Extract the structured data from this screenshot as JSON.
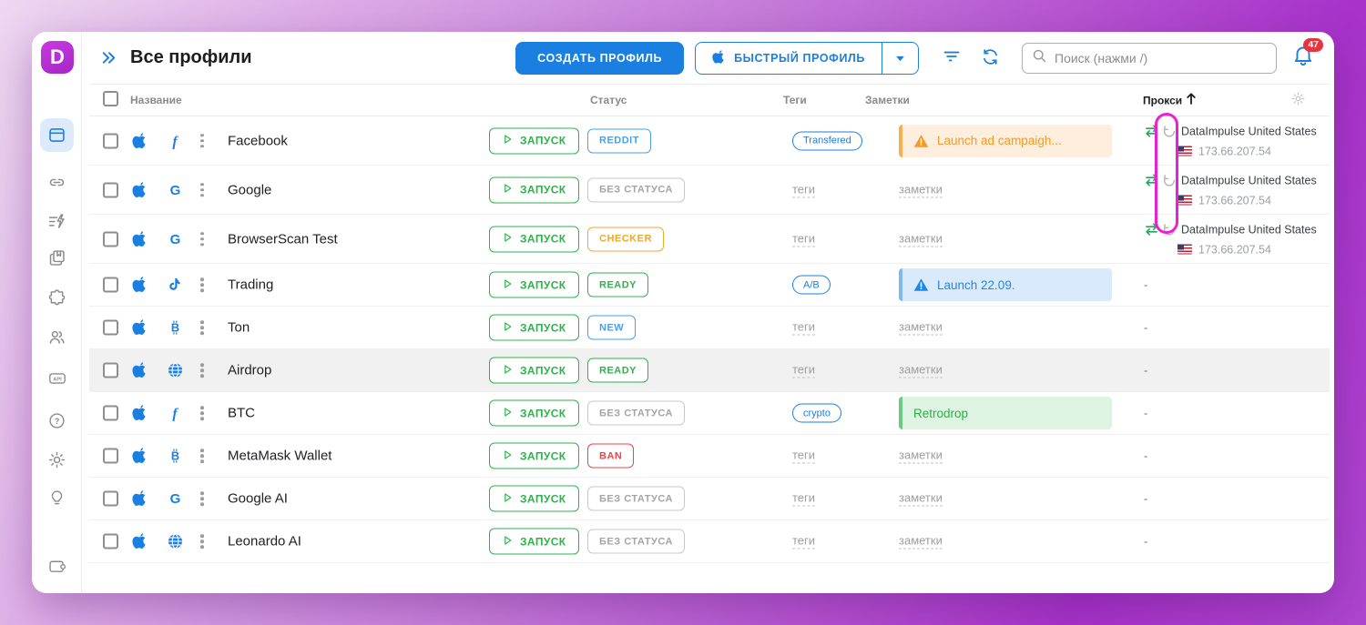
{
  "logo_letter": "D",
  "header": {
    "title": "Все профили",
    "create_button": "СОЗДАТЬ ПРОФИЛЬ",
    "quick_button": "БЫСТРЫЙ ПРОФИЛЬ",
    "search_placeholder": "Поиск (нажми /)",
    "notifications_badge": "47"
  },
  "sidebar": {
    "items": [
      {
        "id": "profiles",
        "icon": "browser-profiles-icon",
        "active": true
      },
      {
        "id": "proxy",
        "icon": "link-icon",
        "active": false
      },
      {
        "id": "automation",
        "icon": "automation-lightning-icon",
        "active": false
      },
      {
        "id": "bookmarks",
        "icon": "pages-icon",
        "active": false
      },
      {
        "id": "extensions",
        "icon": "puzzle-icon",
        "active": false
      },
      {
        "id": "team",
        "icon": "users-icon",
        "active": false
      },
      {
        "id": "api",
        "icon": "api-icon",
        "active": false
      },
      {
        "id": "help",
        "icon": "question-icon",
        "active": false
      },
      {
        "id": "settings",
        "icon": "gear-icon",
        "active": false
      },
      {
        "id": "ideas",
        "icon": "bulb-icon",
        "active": false
      },
      {
        "id": "wallet",
        "icon": "wallet-icon",
        "active": false
      }
    ]
  },
  "table": {
    "headers": {
      "name": "Название",
      "status": "Статус",
      "tags": "Теги",
      "notes": "Заметки",
      "proxy": "Прокси"
    },
    "sort": {
      "column": "Прокси",
      "direction": "asc"
    },
    "launch_label": "ЗАПУСК",
    "tags_placeholder": "теги",
    "notes_placeholder": "заметки",
    "proxy_empty": "-",
    "rows": [
      {
        "name": "Facebook",
        "os_icon": "apple",
        "app_icon": "facebook",
        "status": {
          "label": "REDDIT",
          "variant": "blue"
        },
        "tag": "Transfered",
        "note": {
          "text": "Launch ad campaigh...",
          "variant": "orange",
          "warning": true
        },
        "proxy": {
          "provider": "DataImpulse United States",
          "ip": "173.66.207.54",
          "country": "us"
        },
        "highlighted": false
      },
      {
        "name": "Google",
        "os_icon": "apple",
        "app_icon": "google",
        "status": {
          "label": "БЕЗ СТАТУСА",
          "variant": "gray"
        },
        "tag": null,
        "note": null,
        "proxy": {
          "provider": "DataImpulse United States",
          "ip": "173.66.207.54",
          "country": "us"
        },
        "highlighted": false
      },
      {
        "name": "BrowserScan Test",
        "os_icon": "apple",
        "app_icon": "google",
        "status": {
          "label": "CHECKER",
          "variant": "orange"
        },
        "tag": null,
        "note": null,
        "proxy": {
          "provider": "DataImpulse United States",
          "ip": "173.66.207.54",
          "country": "us"
        },
        "highlighted": false
      },
      {
        "name": "Trading",
        "os_icon": "apple",
        "app_icon": "tiktok",
        "status": {
          "label": "READY",
          "variant": "green"
        },
        "tag": "A/B",
        "note": {
          "text": "Launch 22.09.",
          "variant": "blue",
          "warning": true
        },
        "proxy": null,
        "highlighted": false
      },
      {
        "name": "Ton",
        "os_icon": "apple",
        "app_icon": "bitcoin",
        "status": {
          "label": "NEW",
          "variant": "blue"
        },
        "tag": null,
        "note": null,
        "proxy": null,
        "highlighted": false
      },
      {
        "name": "Airdrop",
        "os_icon": "apple",
        "app_icon": "globe",
        "status": {
          "label": "READY",
          "variant": "green"
        },
        "tag": null,
        "note": null,
        "proxy": null,
        "highlighted": true
      },
      {
        "name": "BTC",
        "os_icon": "apple",
        "app_icon": "facebook",
        "status": {
          "label": "БЕЗ СТАТУСА",
          "variant": "gray"
        },
        "tag": "crypto",
        "note": {
          "text": "Retrodrop",
          "variant": "green",
          "warning": false
        },
        "proxy": null,
        "highlighted": false
      },
      {
        "name": "MetaMask Wallet",
        "os_icon": "apple",
        "app_icon": "bitcoin",
        "status": {
          "label": "BAN",
          "variant": "red"
        },
        "tag": null,
        "note": null,
        "proxy": null,
        "highlighted": false
      },
      {
        "name": "Google AI",
        "os_icon": "apple",
        "app_icon": "google",
        "status": {
          "label": "БЕЗ СТАТУСА",
          "variant": "gray"
        },
        "tag": null,
        "note": null,
        "proxy": null,
        "highlighted": false
      },
      {
        "name": "Leonardo AI",
        "os_icon": "apple",
        "app_icon": "globe",
        "status": {
          "label": "БЕЗ СТАТУСА",
          "variant": "gray"
        },
        "tag": null,
        "note": null,
        "proxy": null,
        "highlighted": false
      }
    ]
  },
  "colors": {
    "accent_blue": "#1a7fe0",
    "green": "#2fb14c",
    "orange": "#f5a623",
    "red": "#ee4444",
    "annotation_pink": "#ee1fd2",
    "badge_red": "#e8343c"
  }
}
